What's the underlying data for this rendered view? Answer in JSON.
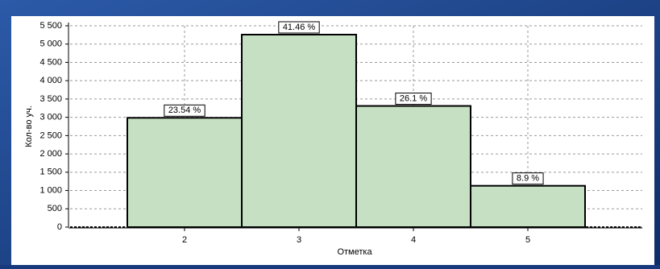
{
  "chart_data": {
    "type": "bar",
    "x": [
      2,
      3,
      4,
      5
    ],
    "values": [
      2985,
      5258,
      3310,
      1129
    ],
    "percent_labels": [
      "23.54 %",
      "41.46 %",
      "26.1 %",
      "8.9 %"
    ],
    "color": "#c5e0c2",
    "xlabel": "Отметка",
    "ylabel": "Кол-во уч.",
    "xlim": [
      1,
      6
    ],
    "xticks": [
      2,
      3,
      4,
      5
    ],
    "ylim": [
      0,
      5500
    ],
    "yticks": [
      0,
      500,
      {
        "value": 1000,
        "label": "1 000"
      },
      {
        "value": 1500,
        "label": "1 500"
      },
      {
        "value": 2000,
        "label": "2 000"
      },
      {
        "value": 2500,
        "label": "2 500"
      },
      {
        "value": 3000,
        "label": "3 000"
      },
      {
        "value": 3500,
        "label": "3 500"
      },
      {
        "value": 4000,
        "label": "4 000"
      },
      {
        "value": 4500,
        "label": "4 500"
      },
      {
        "value": 5000,
        "label": "5 000"
      },
      {
        "value": 5500,
        "label": "5 500"
      }
    ],
    "grid": true
  }
}
